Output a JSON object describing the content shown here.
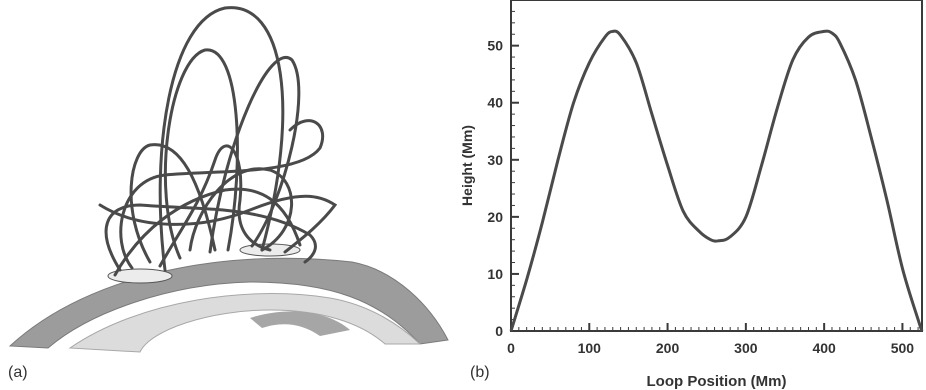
{
  "panels": {
    "a": {
      "label": "(a)"
    },
    "b": {
      "label": "(b)"
    }
  },
  "chart_data": {
    "type": "line",
    "xlabel": "Loop Position (Mm)",
    "ylabel": "Height (Mm)",
    "xlim": [
      0,
      525
    ],
    "ylim": [
      0,
      58
    ],
    "x_ticks": [
      "0",
      "100",
      "200",
      "300",
      "400",
      "500"
    ],
    "y_ticks": [
      "0",
      "10",
      "20",
      "30",
      "40",
      "50"
    ],
    "grid": false,
    "series": [
      {
        "x": [
          0,
          20,
          40,
          60,
          80,
          100,
          120,
          130,
          140,
          160,
          180,
          200,
          220,
          240,
          255,
          265,
          280,
          300,
          320,
          340,
          360,
          380,
          400,
          410,
          420,
          440,
          460,
          480,
          500,
          520,
          525
        ],
        "values": [
          0,
          9,
          19,
          30,
          40,
          47,
          51.5,
          52.5,
          51.8,
          47,
          38,
          29,
          21,
          17.5,
          16,
          15.8,
          16.5,
          20,
          29,
          39,
          47.5,
          51.5,
          52.5,
          52.2,
          50.5,
          44,
          34,
          23,
          11,
          2,
          0
        ]
      }
    ]
  },
  "colors": {
    "curve": "#4a4a4a",
    "axis": "#3a3a3a",
    "sphere_dark": "#9c9c9c",
    "sphere_light": "#d9d9d9",
    "field_lines": "#4a4a4a"
  }
}
